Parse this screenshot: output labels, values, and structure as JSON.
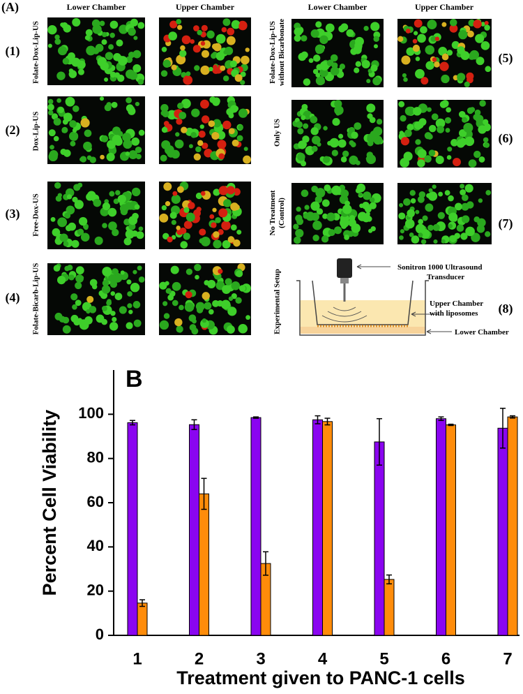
{
  "panel_a": {
    "label": "(A)",
    "column_headers": [
      "Lower Chamber",
      "Upper Chamber",
      "Lower Chamber",
      "Upper Chamber"
    ],
    "rows": [
      {
        "number": "(1)",
        "lines": [
          "Folate-Dox-Lip-US"
        ]
      },
      {
        "number": "(2)",
        "lines": [
          "Dox-Lip-US"
        ]
      },
      {
        "number": "(3)",
        "lines": [
          "Free-Dox-US"
        ]
      },
      {
        "number": "(4)",
        "lines": [
          "Folate-Bicarb-Lip-US"
        ]
      },
      {
        "number": "(5)",
        "lines": [
          "Folate-Dox-Lip-US",
          "without Bicarbonate"
        ]
      },
      {
        "number": "(6)",
        "lines": [
          "Only US"
        ]
      },
      {
        "number": "(7)",
        "lines": [
          "No Treatment",
          "(Control)"
        ]
      },
      {
        "number": "(8)",
        "lines": [
          "Experimental Setup"
        ]
      }
    ],
    "setup": {
      "transducer": [
        "Sonitron 1000 Ultrasound",
        "Transducer"
      ],
      "upper": [
        "Upper Chamber",
        "with liposomes"
      ],
      "lower": [
        "Lower Chamber"
      ]
    }
  },
  "chart_data": {
    "type": "bar",
    "panel_label": "B",
    "x_label": "Treatment given to PANC-1 cells",
    "y_label": "Percent Cell Viability",
    "categories": [
      "1",
      "2",
      "3",
      "4",
      "5",
      "6",
      "7"
    ],
    "series": [
      {
        "color": "#8a05f0",
        "values": [
          96.2,
          95.3,
          98.5,
          97.5,
          87.5,
          98.0,
          93.7
        ],
        "errors": [
          1.0,
          2.2,
          0.3,
          1.8,
          10.5,
          0.8,
          9.0
        ]
      },
      {
        "color": "#ff8c0a",
        "values": [
          14.6,
          64.0,
          32.5,
          96.7,
          25.3,
          95.2,
          98.8
        ],
        "errors": [
          1.5,
          7.0,
          5.3,
          1.5,
          2.0,
          0.3,
          0.5
        ]
      }
    ],
    "ylim": [
      0,
      120
    ],
    "yticks": [
      0,
      20,
      40,
      60,
      80,
      100
    ]
  }
}
